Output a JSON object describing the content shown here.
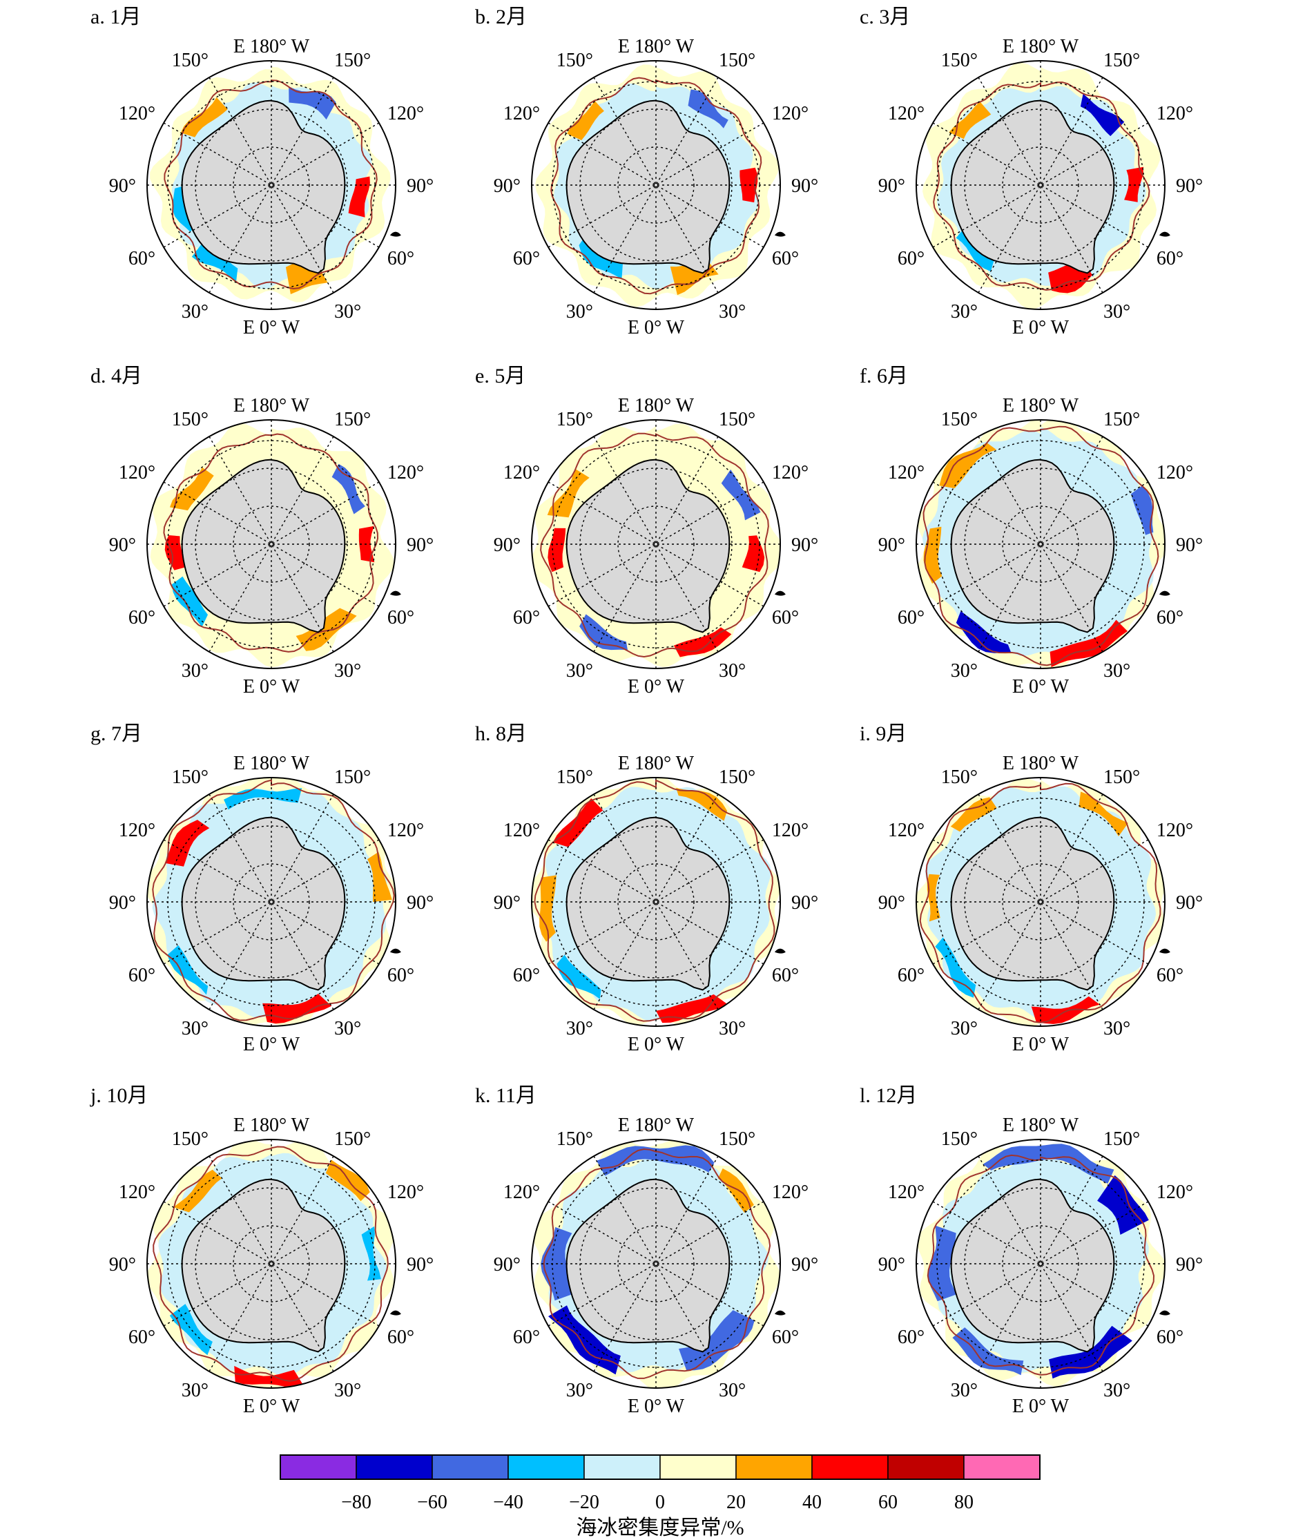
{
  "figure": {
    "panels": [
      {
        "id": "a",
        "title": "a. 1月"
      },
      {
        "id": "b",
        "title": "b. 2月"
      },
      {
        "id": "c",
        "title": "c. 3月"
      },
      {
        "id": "d",
        "title": "d. 4月"
      },
      {
        "id": "e",
        "title": "e. 5月"
      },
      {
        "id": "f",
        "title": "f. 6月"
      },
      {
        "id": "g",
        "title": "g. 7月"
      },
      {
        "id": "h",
        "title": "h. 8月"
      },
      {
        "id": "i",
        "title": "i. 9月"
      },
      {
        "id": "j",
        "title": "j. 10月"
      },
      {
        "id": "k",
        "title": "k. 11月"
      },
      {
        "id": "l",
        "title": "l. 12月"
      }
    ],
    "longitude_labels": {
      "top": "E 180° W",
      "bottom": "E 0° W",
      "upper_left": "150°",
      "upper_right": "150°",
      "mid_upper_left": "120°",
      "mid_upper_right": "120°",
      "left": "90°",
      "right": "90°",
      "mid_lower_left": "60°",
      "mid_lower_right": "60°",
      "lower_left": "30°",
      "lower_right": "30°"
    },
    "colorbar": {
      "title": "海冰密集度异常/%",
      "ticks": [
        "−80",
        "−60",
        "−40",
        "−20",
        "0",
        "20",
        "40",
        "60",
        "80"
      ],
      "colors": [
        "#8a2be2",
        "#0000cd",
        "#4169e1",
        "#00bfff",
        "#cdf0fa",
        "#ffffcc",
        "#ffa500",
        "#ff0000",
        "#c00000",
        "#ff69b4"
      ]
    },
    "colors": {
      "land": "#d9d9d9",
      "coastline": "#000000",
      "mean_edge_contour": "#a0342e",
      "anomaly_contour": "#1e7d1e",
      "grid": "#000000"
    }
  }
}
